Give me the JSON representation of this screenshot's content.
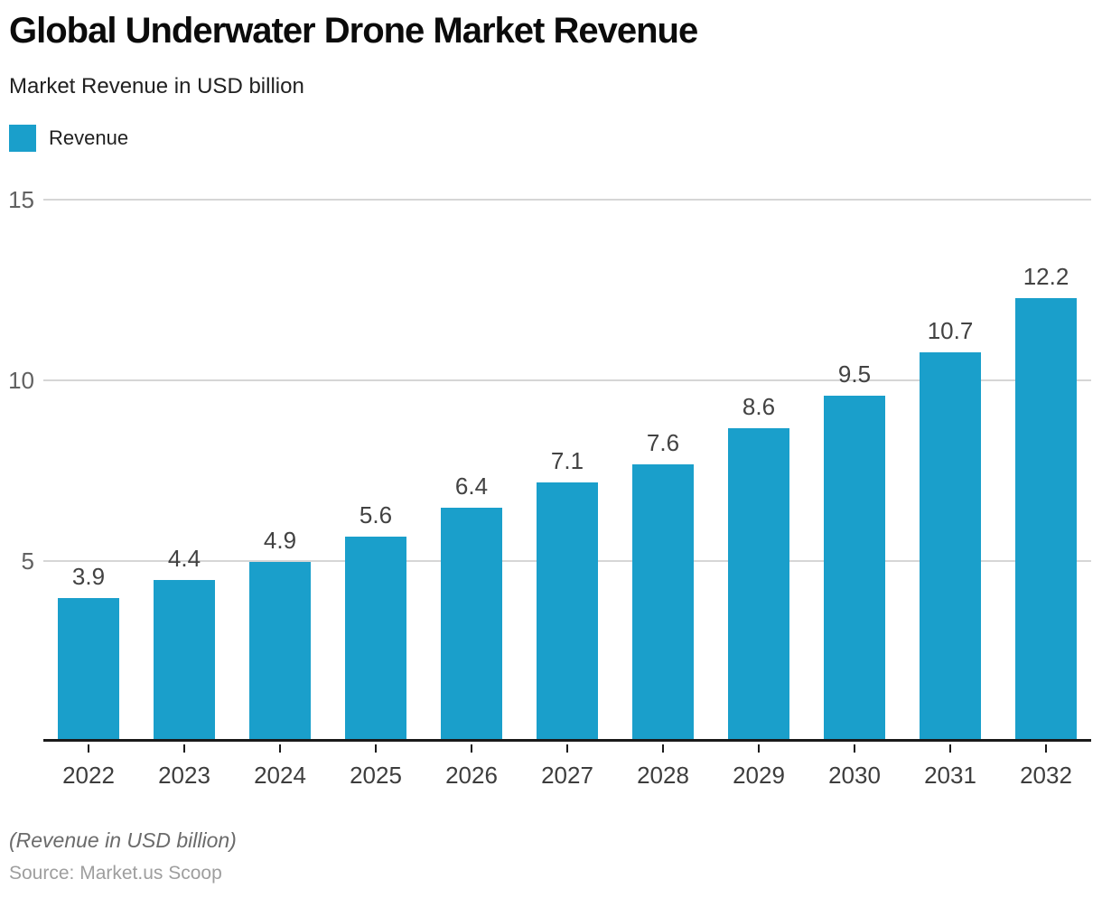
{
  "chart_data": {
    "type": "bar",
    "title": "Global Underwater Drone Market Revenue",
    "subtitle": "Market Revenue in USD billion",
    "legend": [
      {
        "name": "Revenue",
        "color": "#1A9FCB"
      }
    ],
    "categories": [
      "2022",
      "2023",
      "2024",
      "2025",
      "2026",
      "2027",
      "2028",
      "2029",
      "2030",
      "2031",
      "2032"
    ],
    "series": [
      {
        "name": "Revenue",
        "values": [
          3.9,
          4.4,
          4.9,
          5.6,
          6.4,
          7.1,
          7.6,
          8.6,
          9.5,
          10.7,
          12.2
        ]
      }
    ],
    "value_labels": [
      "3.9",
      "4.4",
      "4.9",
      "5.6",
      "6.4",
      "7.1",
      "7.6",
      "8.6",
      "9.5",
      "10.7",
      "12.2"
    ],
    "bar_color": "#1A9FCB",
    "ylim": [
      0,
      15
    ],
    "yticks": [
      5,
      10,
      15
    ],
    "grid": "horizontal",
    "legend_position": "top-left",
    "footnote": "(Revenue in USD billion)",
    "source": "Source: Market.us Scoop"
  }
}
